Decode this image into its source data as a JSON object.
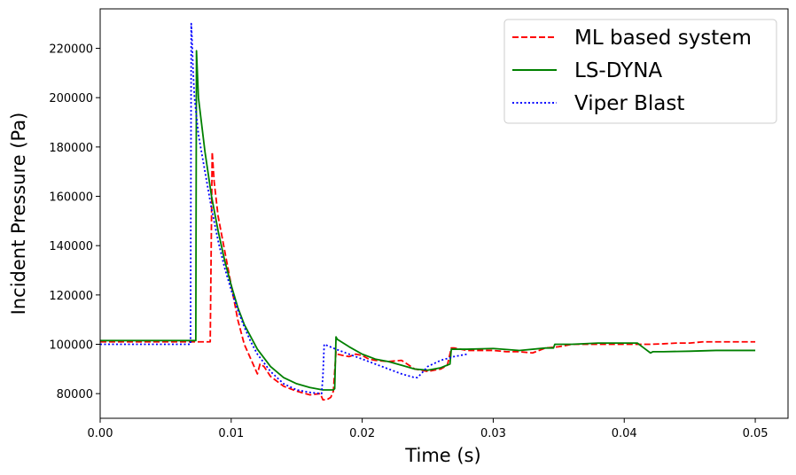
{
  "chart_data": {
    "type": "line",
    "title": "",
    "xlabel": "Time (s)",
    "ylabel": "Incident Pressure (Pa)",
    "xlim": [
      0,
      0.0525
    ],
    "ylim": [
      70000,
      236000
    ],
    "xticks": [
      0.0,
      0.01,
      0.02,
      0.03,
      0.04,
      0.05
    ],
    "xtick_labels": [
      "0.00",
      "0.01",
      "0.02",
      "0.03",
      "0.04",
      "0.05"
    ],
    "yticks": [
      80000,
      100000,
      120000,
      140000,
      160000,
      180000,
      200000,
      220000
    ],
    "ytick_labels": [
      "80000",
      "100000",
      "120000",
      "140000",
      "160000",
      "180000",
      "200000",
      "220000"
    ],
    "grid": false,
    "legend_position": "top-right",
    "series": [
      {
        "name": "ML based system",
        "color": "#ff0000",
        "style": "dashed",
        "x": [
          0,
          0.0084,
          0.00855,
          0.0087,
          0.009,
          0.0095,
          0.01,
          0.0105,
          0.011,
          0.0115,
          0.012,
          0.0122,
          0.0125,
          0.013,
          0.014,
          0.015,
          0.016,
          0.0168,
          0.017,
          0.0173,
          0.0176,
          0.0178,
          0.018,
          0.0181,
          0.0185,
          0.019,
          0.0195,
          0.02,
          0.0205,
          0.021,
          0.022,
          0.023,
          0.024,
          0.025,
          0.026,
          0.0265,
          0.0268,
          0.027,
          0.028,
          0.029,
          0.03,
          0.031,
          0.032,
          0.033,
          0.034,
          0.035,
          0.036,
          0.037,
          0.038,
          0.039,
          0.04,
          0.041,
          0.042,
          0.043,
          0.044,
          0.045,
          0.046,
          0.047,
          0.048,
          0.049,
          0.05
        ],
        "y": [
          101000,
          101000,
          178000,
          166000,
          152000,
          138000,
          124000,
          110000,
          100000,
          94000,
          88000,
          92000,
          91000,
          87000,
          83000,
          81000,
          79500,
          80000,
          77500,
          77500,
          78500,
          81000,
          97000,
          96000,
          95500,
          95000,
          96000,
          95500,
          94000,
          93500,
          93000,
          93500,
          90000,
          89000,
          90000,
          91500,
          98500,
          98500,
          97500,
          97500,
          97500,
          97000,
          97000,
          96500,
          98500,
          99000,
          100000,
          100000,
          100000,
          100000,
          100000,
          100000,
          100000,
          100200,
          100500,
          100500,
          101000,
          101000,
          101000,
          101000,
          101000
        ]
      },
      {
        "name": "LS-DYNA",
        "color": "#008000",
        "style": "solid",
        "x": [
          0,
          0.0073,
          0.00735,
          0.0075,
          0.008,
          0.0085,
          0.009,
          0.0095,
          0.01,
          0.0105,
          0.011,
          0.012,
          0.013,
          0.014,
          0.015,
          0.016,
          0.017,
          0.0178,
          0.0179,
          0.018,
          0.0181,
          0.019,
          0.02,
          0.021,
          0.022,
          0.023,
          0.024,
          0.025,
          0.026,
          0.0267,
          0.0268,
          0.028,
          0.03,
          0.032,
          0.034,
          0.0346,
          0.0347,
          0.036,
          0.038,
          0.04,
          0.041,
          0.0415,
          0.042,
          0.0422,
          0.043,
          0.045,
          0.047,
          0.05
        ],
        "y": [
          101500,
          101500,
          219000,
          200000,
          178000,
          160000,
          146000,
          134000,
          124000,
          115000,
          108000,
          98000,
          91000,
          86500,
          84000,
          82500,
          81500,
          81500,
          82000,
          103000,
          102000,
          99000,
          96000,
          94000,
          93000,
          91500,
          90000,
          89500,
          90500,
          92000,
          98000,
          98000,
          98300,
          97500,
          98500,
          98500,
          100000,
          100000,
          100500,
          100500,
          100500,
          98500,
          96500,
          97000,
          97000,
          97200,
          97500,
          97500
        ]
      },
      {
        "name": "Viper Blast",
        "color": "#0000ff",
        "style": "dotted",
        "x": [
          0,
          0.0069,
          0.00695,
          0.007,
          0.0071,
          0.0072,
          0.0075,
          0.008,
          0.0085,
          0.009,
          0.0095,
          0.01,
          0.0105,
          0.011,
          0.0115,
          0.012,
          0.013,
          0.014,
          0.015,
          0.016,
          0.0165,
          0.0169,
          0.017,
          0.0171,
          0.018,
          0.019,
          0.02,
          0.021,
          0.022,
          0.023,
          0.024,
          0.0242,
          0.0245,
          0.025,
          0.026,
          0.027,
          0.028
        ],
        "y": [
          100000,
          100000,
          230000,
          225000,
          210000,
          200000,
          185000,
          170000,
          155000,
          142000,
          131000,
          122000,
          114000,
          107000,
          101000,
          96000,
          89000,
          84000,
          81500,
          80500,
          80200,
          80000,
          87000,
          100000,
          98000,
          96000,
          94000,
          92000,
          90000,
          88000,
          86500,
          86500,
          88000,
          91000,
          93500,
          95000,
          96000
        ]
      }
    ]
  }
}
